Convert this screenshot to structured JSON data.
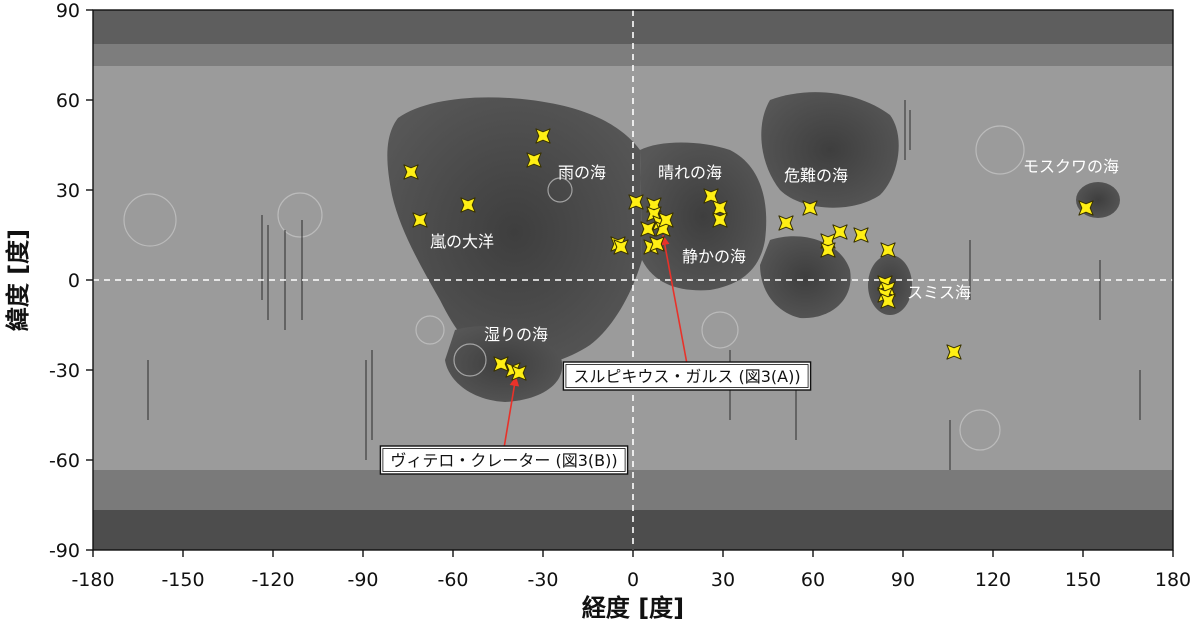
{
  "colors": {
    "marker_fill": "#ffef14",
    "marker_stroke": "#3a3300",
    "highland": "#9d9d9d",
    "mare": "#4a4a4a",
    "polar_noise": "#5a5a5a",
    "guide_line": "#ffffff",
    "callout_arrow": "#e8322a"
  },
  "axes": {
    "x_title": "経度 [度]",
    "y_title": "緯度 [度]",
    "x_range": [
      -180,
      180
    ],
    "y_range": [
      -90,
      90
    ],
    "x_ticks": [
      "-180",
      "-150",
      "-120",
      "-90",
      "-60",
      "-30",
      "0",
      "30",
      "60",
      "90",
      "120",
      "150",
      "180"
    ],
    "y_ticks": [
      "90",
      "60",
      "30",
      "0",
      "-30",
      "-60",
      "-90"
    ],
    "guide_lines": "dashed white at longitude 0 and latitude 0"
  },
  "regions": [
    {
      "name": "雨の海",
      "lon": -17,
      "lat": 34
    },
    {
      "name": "晴れの海",
      "lon": 19,
      "lat": 34
    },
    {
      "name": "危難の海",
      "lon": 61,
      "lat": 33
    },
    {
      "name": "モスクワの海",
      "lon": 146,
      "lat": 36
    },
    {
      "name": "嵐の大洋",
      "lon": -57,
      "lat": 11
    },
    {
      "name": "静かの海",
      "lon": 27,
      "lat": 6
    },
    {
      "name": "スミス海",
      "lon": 102,
      "lat": -6
    },
    {
      "name": "湿りの海",
      "lon": -39,
      "lat": -20
    }
  ],
  "callouts": [
    {
      "label": "スルピキウス・ガルス (図3(A))",
      "target_lon": 10,
      "target_lat": 17,
      "anchor_lon": 18,
      "anchor_lat": -32
    },
    {
      "label": "ヴィテロ・クレーター (図3(B))",
      "target_lon": -39,
      "target_lat": -30,
      "anchor_lon": -43,
      "anchor_lat": -60
    }
  ],
  "sites": [
    {
      "lon": -74,
      "lat": 36
    },
    {
      "lon": -71,
      "lat": 20
    },
    {
      "lon": -55,
      "lat": 25
    },
    {
      "lon": -30,
      "lat": 48
    },
    {
      "lon": -33,
      "lat": 40
    },
    {
      "lon": -44,
      "lat": -28
    },
    {
      "lon": -40,
      "lat": -30
    },
    {
      "lon": -38,
      "lat": -31
    },
    {
      "lon": -5,
      "lat": 12
    },
    {
      "lon": -4,
      "lat": 11
    },
    {
      "lon": 1,
      "lat": 26
    },
    {
      "lon": 5,
      "lat": 17
    },
    {
      "lon": 6,
      "lat": 11
    },
    {
      "lon": 7,
      "lat": 25
    },
    {
      "lon": 7,
      "lat": 22
    },
    {
      "lon": 8,
      "lat": 12
    },
    {
      "lon": 9,
      "lat": 19
    },
    {
      "lon": 10,
      "lat": 17
    },
    {
      "lon": 11,
      "lat": 20
    },
    {
      "lon": 26,
      "lat": 28
    },
    {
      "lon": 29,
      "lat": 24
    },
    {
      "lon": 29,
      "lat": 20
    },
    {
      "lon": 51,
      "lat": 19
    },
    {
      "lon": 59,
      "lat": 24
    },
    {
      "lon": 65,
      "lat": 13
    },
    {
      "lon": 65,
      "lat": 10
    },
    {
      "lon": 69,
      "lat": 16
    },
    {
      "lon": 76,
      "lat": 15
    },
    {
      "lon": 85,
      "lat": 10
    },
    {
      "lon": 84,
      "lat": -1
    },
    {
      "lon": 85,
      "lat": -3
    },
    {
      "lon": 84,
      "lat": -5
    },
    {
      "lon": 85,
      "lat": -7
    },
    {
      "lon": 107,
      "lat": -24
    },
    {
      "lon": 151,
      "lat": 24
    }
  ]
}
